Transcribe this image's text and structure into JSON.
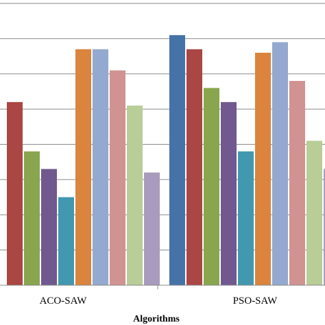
{
  "chart_data": {
    "type": "bar",
    "xlabel": "Algorithms",
    "ylabel": "",
    "categories": [
      "ACO-SAW",
      "PSO-SAW"
    ],
    "ylim": [
      0,
      8
    ],
    "grid": true,
    "series": [
      {
        "color": "#4572A7",
        "values": [
          null,
          7.1
        ]
      },
      {
        "color": "#AA4643",
        "values": [
          5.2,
          6.7
        ]
      },
      {
        "color": "#89A54E",
        "values": [
          3.8,
          5.6
        ]
      },
      {
        "color": "#71588F",
        "values": [
          3.3,
          5.2
        ]
      },
      {
        "color": "#4198AF",
        "values": [
          2.5,
          3.8
        ]
      },
      {
        "color": "#DB843D",
        "values": [
          6.7,
          6.6
        ]
      },
      {
        "color": "#93A9CF",
        "values": [
          6.7,
          6.9
        ]
      },
      {
        "color": "#D19392",
        "values": [
          6.1,
          5.8
        ]
      },
      {
        "color": "#B9CD96",
        "values": [
          5.1,
          4.1
        ]
      },
      {
        "color": "#A99BBD",
        "values": [
          3.2,
          3.3
        ]
      }
    ]
  }
}
